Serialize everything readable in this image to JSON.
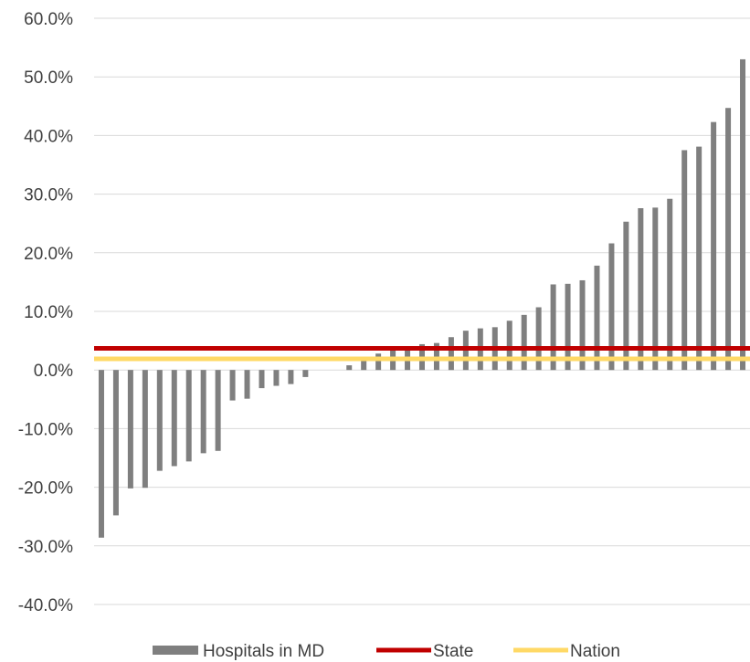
{
  "chart_data": {
    "type": "bar",
    "ylim": [
      -40,
      60
    ],
    "y_ticks": [
      60,
      50,
      40,
      30,
      20,
      10,
      0,
      -10,
      -20,
      -30,
      -40
    ],
    "y_tick_labels": [
      "60.0%",
      "50.0%",
      "40.0%",
      "30.0%",
      "20.0%",
      "10.0%",
      "0.0%",
      "-10.0%",
      "-20.0%",
      "-30.0%",
      "-40.0%"
    ],
    "grid": true,
    "legend_position": "bottom",
    "series": [
      {
        "name": "Hospitals in MD",
        "type": "bar",
        "color": "#7f7f7f",
        "values": [
          -28.6,
          -24.8,
          -20.2,
          -20.1,
          -17.2,
          -16.4,
          -15.6,
          -14.2,
          -13.8,
          -5.2,
          -4.9,
          -3.1,
          -2.7,
          -2.4,
          -1.2,
          0,
          0,
          0.8,
          1.9,
          2.8,
          3.4,
          3.5,
          4.4,
          4.6,
          5.6,
          6.7,
          7.1,
          7.3,
          8.4,
          9.4,
          10.7,
          14.6,
          14.7,
          15.3,
          17.8,
          21.6,
          25.3,
          27.6,
          27.7,
          29.2,
          37.5,
          38.1,
          42.3,
          44.7,
          53.0
        ]
      },
      {
        "name": "State",
        "type": "line",
        "color": "#c00000",
        "value": 3.7
      },
      {
        "name": "Nation",
        "type": "line",
        "color": "#ffd966",
        "value": 1.9
      }
    ]
  }
}
